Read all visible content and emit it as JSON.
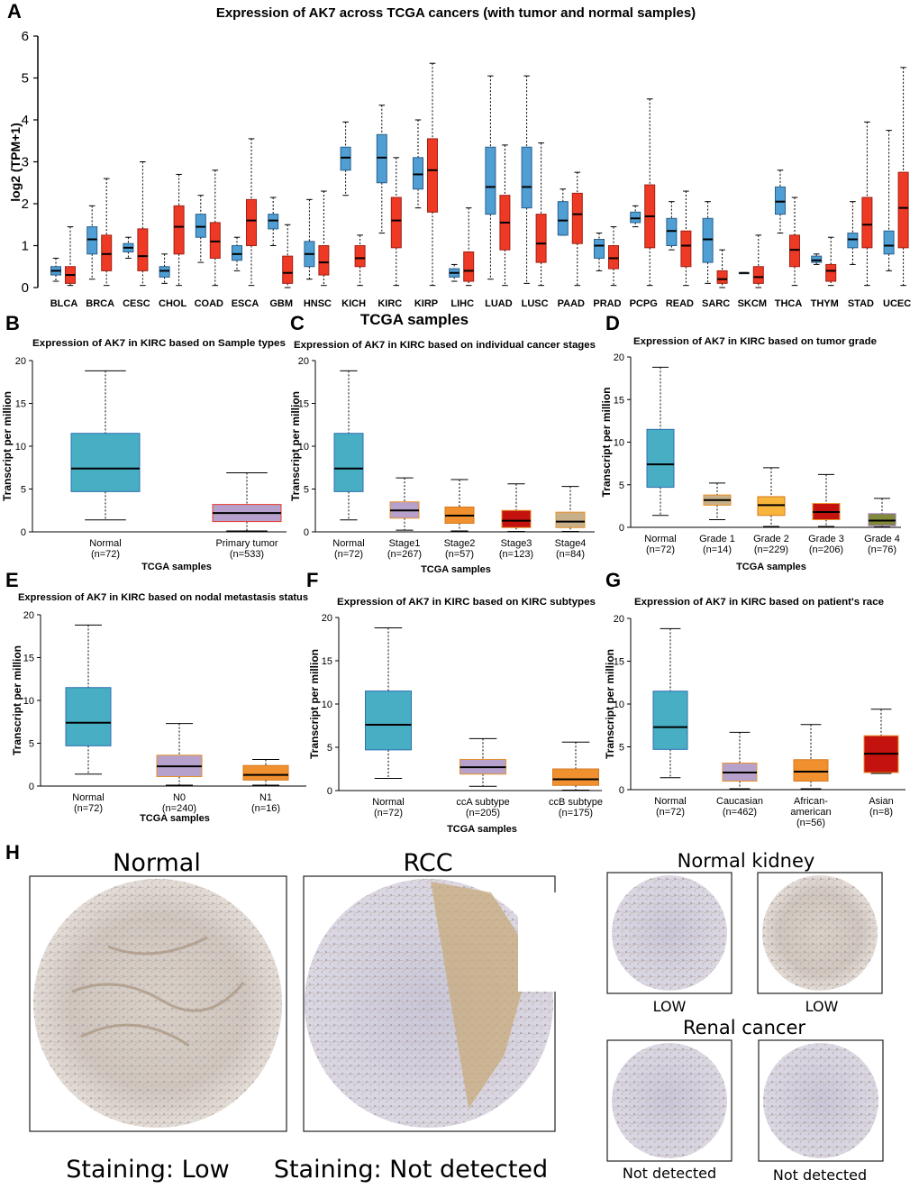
{
  "colors": {
    "blue": "#4f9fd5",
    "red": "#ee3a25",
    "cyan": "#47aec4",
    "purple": "#b5a1cb",
    "orange": "#f1902f",
    "darkred": "#c4120f",
    "tan": "#c8b088",
    "yellow": "#f7b53b",
    "olive": "#808a3a"
  },
  "chart_data": [
    {
      "id": "A",
      "type": "box",
      "panel_label": "A",
      "title": "Expression of AK7 across TCGA cancers (with tumor and normal samples)",
      "ylabel": "log2 (TPM+1)",
      "ylim": [
        0,
        6
      ],
      "yticks": [
        "0",
        "1",
        "2",
        "3",
        "4",
        "5",
        "6"
      ],
      "series": [
        {
          "name": "Normal",
          "color": "blue"
        },
        {
          "name": "Tumor",
          "color": "red"
        }
      ],
      "categories": [
        "BLCA",
        "BRCA",
        "CESC",
        "CHOL",
        "COAD",
        "ESCA",
        "GBM",
        "HNSC",
        "KICH",
        "KIRC",
        "KIRP",
        "LIHC",
        "LUAD",
        "LUSC",
        "PAAD",
        "PRAD",
        "PCPG",
        "READ",
        "SARC",
        "SKCM",
        "THCA",
        "THYM",
        "STAD",
        "UCEC"
      ],
      "normal": [
        [
          0.15,
          0.3,
          0.4,
          0.5,
          0.7
        ],
        [
          0.2,
          0.8,
          1.15,
          1.45,
          1.95
        ],
        [
          0.7,
          0.85,
          0.95,
          1.05,
          1.2
        ],
        [
          0.1,
          0.25,
          0.4,
          0.5,
          0.8
        ],
        [
          0.6,
          1.2,
          1.45,
          1.75,
          2.2
        ],
        [
          0.4,
          0.65,
          0.8,
          1.0,
          1.2
        ],
        [
          1.0,
          1.4,
          1.6,
          1.75,
          2.15
        ],
        [
          0.2,
          0.5,
          0.8,
          1.1,
          2.1
        ],
        [
          2.2,
          2.8,
          3.1,
          3.35,
          3.95
        ],
        [
          1.3,
          2.5,
          3.1,
          3.65,
          4.35
        ],
        [
          1.9,
          2.35,
          2.7,
          3.1,
          4.0
        ],
        [
          0.15,
          0.25,
          0.35,
          0.45,
          0.55
        ],
        [
          0.2,
          1.75,
          2.4,
          3.35,
          5.05
        ],
        [
          0.1,
          1.9,
          2.4,
          3.35,
          5.05
        ],
        [
          1.25,
          1.25,
          1.6,
          2.05,
          2.35
        ],
        [
          0.4,
          0.7,
          1.0,
          1.15,
          1.3
        ],
        [
          1.45,
          1.55,
          1.65,
          1.8,
          1.95
        ],
        [
          0.9,
          1.0,
          1.35,
          1.65,
          2.05
        ],
        [
          0.1,
          0.6,
          1.15,
          1.65,
          2.05
        ],
        [
          0.35,
          0.35,
          0.35,
          0.35,
          0.35
        ],
        [
          1.3,
          1.75,
          2.05,
          2.4,
          2.8
        ],
        [
          0.55,
          0.6,
          0.65,
          0.75,
          0.8
        ],
        [
          0.55,
          0.95,
          1.15,
          1.3,
          2.05
        ],
        [
          0.4,
          0.8,
          1.0,
          1.35,
          3.75
        ]
      ],
      "tumor": [
        [
          0.05,
          0.1,
          0.3,
          0.5,
          1.45
        ],
        [
          0.05,
          0.4,
          0.8,
          1.25,
          2.6
        ],
        [
          0.05,
          0.4,
          0.75,
          1.4,
          3.0
        ],
        [
          0.05,
          0.8,
          1.45,
          1.95,
          2.7
        ],
        [
          0.05,
          0.7,
          1.1,
          1.55,
          2.8
        ],
        [
          0.05,
          1.0,
          1.6,
          2.1,
          3.55
        ],
        [
          0.0,
          0.1,
          0.35,
          0.75,
          1.5
        ],
        [
          0.05,
          0.3,
          0.6,
          1.0,
          2.3
        ],
        [
          0.05,
          0.5,
          0.7,
          1.0,
          1.25
        ],
        [
          0.05,
          0.95,
          1.6,
          2.15,
          3.1
        ],
        [
          0.05,
          1.8,
          2.8,
          3.55,
          5.35
        ],
        [
          0.05,
          0.15,
          0.4,
          0.85,
          1.9
        ],
        [
          0.05,
          0.9,
          1.55,
          2.2,
          3.4
        ],
        [
          0.05,
          0.6,
          1.05,
          1.75,
          3.45
        ],
        [
          0.05,
          1.05,
          1.75,
          2.25,
          2.75
        ],
        [
          0.05,
          0.45,
          0.7,
          1.0,
          1.45
        ],
        [
          0.05,
          0.95,
          1.7,
          2.45,
          4.5
        ],
        [
          0.05,
          0.5,
          1.0,
          1.35,
          2.3
        ],
        [
          0.0,
          0.1,
          0.2,
          0.4,
          0.9
        ],
        [
          0.0,
          0.1,
          0.25,
          0.5,
          1.25
        ],
        [
          0.05,
          0.5,
          0.9,
          1.25,
          2.15
        ],
        [
          0.05,
          0.15,
          0.4,
          0.55,
          1.2
        ],
        [
          0.05,
          0.95,
          1.5,
          2.15,
          3.95
        ],
        [
          0.05,
          0.95,
          1.9,
          2.75,
          5.25
        ]
      ]
    },
    {
      "id": "B",
      "type": "box",
      "panel_label": "B",
      "title": "Expression of AK7 in KIRC based on Sample types",
      "ylabel": "Transcript per million",
      "xlabel": "TCGA samples",
      "ylim": [
        0,
        20
      ],
      "yticks": [
        "0",
        "5",
        "10",
        "15",
        "20"
      ],
      "groups": [
        {
          "label": "Normal",
          "n": "(n=72)",
          "stats": [
            1.4,
            4.7,
            7.4,
            11.5,
            18.8
          ],
          "color": "cyan",
          "stroke": "#2f6fb0"
        },
        {
          "label": "Primary tumor",
          "n": "(n=533)",
          "stats": [
            0.1,
            1.2,
            2.2,
            3.2,
            6.9
          ],
          "color": "purple",
          "stroke": "#e63b2e"
        }
      ]
    },
    {
      "id": "C",
      "type": "box",
      "panel_label": "C",
      "title": "Expression of AK7 in KIRC based on individual cancer stages",
      "ylabel": "Transcript per million",
      "xlabel": "TCGA samples",
      "ylim": [
        0,
        20
      ],
      "yticks": [
        "0",
        "5",
        "10",
        "15",
        "20"
      ],
      "groups": [
        {
          "label": "Normal",
          "n": "(n=72)",
          "stats": [
            1.4,
            4.7,
            7.4,
            11.5,
            18.8
          ],
          "color": "cyan",
          "stroke": "#2f6fb0"
        },
        {
          "label": "Stage1",
          "n": "(n=267)",
          "stats": [
            0.2,
            1.6,
            2.5,
            3.5,
            6.3
          ],
          "color": "purple",
          "stroke": "#e8902a"
        },
        {
          "label": "Stage2",
          "n": "(n=57)",
          "stats": [
            0.1,
            1.0,
            1.9,
            2.9,
            6.1
          ],
          "color": "orange",
          "stroke": "#d5781f"
        },
        {
          "label": "Stage3",
          "n": "(n=123)",
          "stats": [
            0.05,
            0.5,
            1.3,
            2.5,
            5.6
          ],
          "color": "darkred",
          "stroke": "#e8902a"
        },
        {
          "label": "Stage4",
          "n": "(n=84)",
          "stats": [
            0.05,
            0.5,
            1.2,
            2.3,
            5.3
          ],
          "color": "tan",
          "stroke": "#e8902a"
        }
      ]
    },
    {
      "id": "D",
      "type": "box",
      "panel_label": "D",
      "title": "Expression of AK7 in KIRC based on tumor grade",
      "ylabel": "Transcript per million",
      "xlabel": "TCGA samples",
      "ylim": [
        0,
        20
      ],
      "yticks": [
        "0",
        "5",
        "10",
        "15",
        "20"
      ],
      "groups": [
        {
          "label": "Normal",
          "n": "(n=72)",
          "stats": [
            1.4,
            4.7,
            7.4,
            11.5,
            18.8
          ],
          "color": "cyan",
          "stroke": "#2f6fb0"
        },
        {
          "label": "Grade 1",
          "n": "(n=14)",
          "stats": [
            0.9,
            2.6,
            3.2,
            3.8,
            5.2
          ],
          "color": "tan",
          "stroke": "#e8902a"
        },
        {
          "label": "Grade 2",
          "n": "(n=229)",
          "stats": [
            0.1,
            1.4,
            2.6,
            3.6,
            7.0
          ],
          "color": "yellow",
          "stroke": "#d5781f"
        },
        {
          "label": "Grade 3",
          "n": "(n=206)",
          "stats": [
            0.1,
            0.9,
            1.8,
            2.8,
            6.2
          ],
          "color": "darkred",
          "stroke": "#e8902a"
        },
        {
          "label": "Grade 4",
          "n": "(n=76)",
          "stats": [
            0.05,
            0.2,
            0.8,
            1.6,
            3.4
          ],
          "color": "olive",
          "stroke": "#9a6fbd"
        }
      ]
    },
    {
      "id": "E",
      "type": "box",
      "panel_label": "E",
      "title": "Expression of AK7 in KIRC based on nodal metastasis status",
      "ylabel": "Transcript per million",
      "xlabel": "TCGA samples",
      "ylim": [
        0,
        20
      ],
      "yticks": [
        "0",
        "5",
        "10",
        "15",
        "20"
      ],
      "groups": [
        {
          "label": "Normal",
          "n": "(n=72)",
          "stats": [
            1.4,
            4.7,
            7.4,
            11.5,
            18.8
          ],
          "color": "cyan",
          "stroke": "#2f6fb0"
        },
        {
          "label": "N0",
          "n": "(n=240)",
          "stats": [
            0.1,
            1.1,
            2.3,
            3.6,
            7.3
          ],
          "color": "purple",
          "stroke": "#e8902a"
        },
        {
          "label": "N1",
          "n": "(n=16)",
          "stats": [
            0.1,
            0.7,
            1.3,
            2.4,
            3.1
          ],
          "color": "orange",
          "stroke": "#d5781f"
        }
      ]
    },
    {
      "id": "F",
      "type": "box",
      "panel_label": "F",
      "title": "Expression of AK7 in KIRC based on KIRC subtypes",
      "ylabel": "Transcript per million",
      "xlabel": "TCGA samples",
      "ylim": [
        0,
        20
      ],
      "yticks": [
        "0",
        "5",
        "10",
        "15",
        "20"
      ],
      "groups": [
        {
          "label": "Normal",
          "n": "(n=72)",
          "stats": [
            1.4,
            4.7,
            7.6,
            11.5,
            18.8
          ],
          "color": "cyan",
          "stroke": "#2f6fb0"
        },
        {
          "label": "ccA subtype",
          "n": "(n=205)",
          "stats": [
            0.5,
            1.9,
            2.7,
            3.6,
            6.0
          ],
          "color": "purple",
          "stroke": "#e8902a"
        },
        {
          "label": "ccB subtype",
          "n": "(n=175)",
          "stats": [
            0.05,
            0.6,
            1.3,
            2.5,
            5.6
          ],
          "color": "orange",
          "stroke": "#d5781f"
        }
      ]
    },
    {
      "id": "G",
      "type": "box",
      "panel_label": "G",
      "title": "Expression of AK7 in KIRC based on patient's race",
      "ylabel": "Transcript per million",
      "ylim": [
        0,
        20
      ],
      "yticks": [
        "0",
        "5",
        "10",
        "15",
        "20"
      ],
      "groups": [
        {
          "label": "Normal",
          "n": "(n=72)",
          "stats": [
            1.4,
            4.7,
            7.3,
            11.5,
            18.8
          ],
          "color": "cyan",
          "stroke": "#2f6fb0"
        },
        {
          "label": "Caucasian",
          "n": "(n=462)",
          "stats": [
            0.1,
            1.0,
            2.0,
            3.1,
            6.7
          ],
          "color": "purple",
          "stroke": "#e8902a"
        },
        {
          "label": "African-\namerican",
          "n": "(n=56)",
          "stats": [
            0.1,
            1.0,
            2.1,
            3.5,
            7.6
          ],
          "color": "orange",
          "stroke": "#d5781f"
        },
        {
          "label": "Asian",
          "n": "(n=8)",
          "stats": [
            1.9,
            2.0,
            4.2,
            6.3,
            9.4
          ],
          "color": "darkred",
          "stroke": "#e8902a"
        }
      ]
    }
  ],
  "center_title": "TCGA samples",
  "panel_h": {
    "label": "H",
    "left_titles": [
      "Normal",
      "RCC"
    ],
    "left_captions": [
      "Staining: Low",
      "Staining: Not detected"
    ],
    "right_header_top": "Normal kidney",
    "right_header_bottom": "Renal cancer",
    "right_captions": [
      "LOW",
      "LOW",
      "Not detected",
      "Not detected"
    ]
  }
}
